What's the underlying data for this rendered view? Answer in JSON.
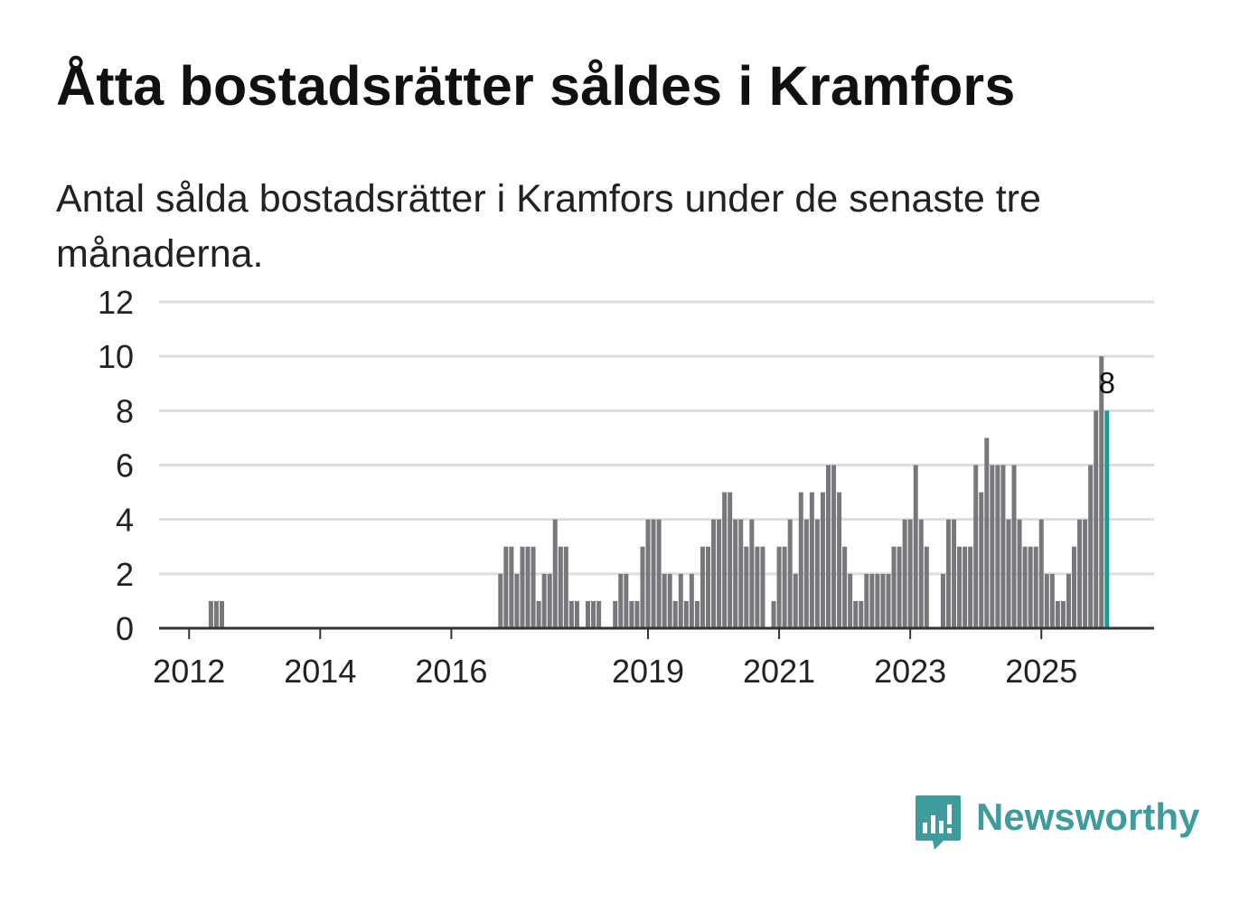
{
  "title": "Åtta bostadsrätter såldes i Kramfors",
  "subtitle": "Antal sålda bostadsrätter i Kramfors under de senaste tre månaderna.",
  "brand": {
    "name": "Newsworthy",
    "color": "#3e9c9c",
    "icon": "bar-chart-speech-bubble-icon"
  },
  "colors": {
    "bar": "#78777c",
    "highlight": "#1f9893",
    "grid": "#dddddd",
    "axis": "#333333"
  },
  "chart_data": {
    "type": "bar",
    "title": "Åtta bostadsrätter såldes i Kramfors",
    "xlabel": "",
    "ylabel": "",
    "ylim": [
      0,
      12
    ],
    "yticks": [
      0,
      2,
      4,
      6,
      8,
      10,
      12
    ],
    "grid": true,
    "xticks": [
      {
        "label": "2012",
        "index": 5
      },
      {
        "label": "2014",
        "index": 29
      },
      {
        "label": "2016",
        "index": 53
      },
      {
        "label": "2019",
        "index": 89
      },
      {
        "label": "2021",
        "index": 113
      },
      {
        "label": "2023",
        "index": 137
      },
      {
        "label": "2025",
        "index": 161
      }
    ],
    "values": [
      0,
      0,
      0,
      0,
      0,
      0,
      0,
      0,
      0,
      1,
      1,
      1,
      0,
      0,
      0,
      0,
      0,
      0,
      0,
      0,
      0,
      0,
      0,
      0,
      0,
      0,
      0,
      0,
      0,
      0,
      0,
      0,
      0,
      0,
      0,
      0,
      0,
      0,
      0,
      0,
      0,
      0,
      0,
      0,
      0,
      0,
      0,
      0,
      0,
      0,
      0,
      0,
      0,
      0,
      0,
      0,
      0,
      0,
      0,
      0,
      0,
      0,
      2,
      3,
      3,
      2,
      3,
      3,
      3,
      1,
      2,
      2,
      4,
      3,
      3,
      1,
      1,
      0,
      1,
      1,
      1,
      0,
      0,
      1,
      2,
      2,
      1,
      1,
      3,
      4,
      4,
      4,
      2,
      2,
      1,
      2,
      1,
      2,
      1,
      3,
      3,
      4,
      4,
      5,
      5,
      4,
      4,
      3,
      4,
      3,
      3,
      0,
      1,
      3,
      3,
      4,
      2,
      5,
      4,
      5,
      4,
      5,
      6,
      6,
      5,
      3,
      2,
      1,
      1,
      2,
      2,
      2,
      2,
      2,
      3,
      3,
      4,
      4,
      6,
      4,
      3,
      0,
      0,
      2,
      4,
      4,
      3,
      3,
      3,
      6,
      5,
      7,
      6,
      6,
      6,
      4,
      6,
      4,
      3,
      3,
      3,
      4,
      2,
      2,
      1,
      1,
      2,
      3,
      4,
      4,
      6,
      8,
      10,
      8
    ],
    "highlight_last": true,
    "last_value_label": "8"
  }
}
